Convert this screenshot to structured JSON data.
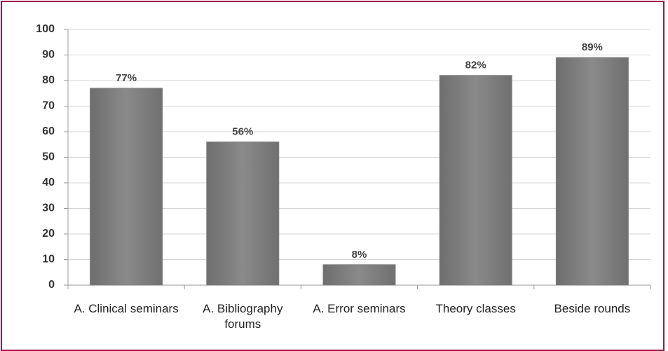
{
  "chart_data": {
    "type": "bar",
    "categories": [
      "A. Clinical seminars",
      "A. Bibliography forums",
      "A. Error seminars",
      "Theory classes",
      "Beside rounds"
    ],
    "values": [
      77,
      56,
      8,
      82,
      89
    ],
    "value_labels": [
      "77%",
      "56%",
      "8%",
      "82%",
      "89%"
    ],
    "color": "#7f7f7f",
    "ylim": [
      0,
      100
    ],
    "yticks": [
      0,
      10,
      20,
      30,
      40,
      50,
      60,
      70,
      80,
      90,
      100
    ],
    "grid": true
  }
}
